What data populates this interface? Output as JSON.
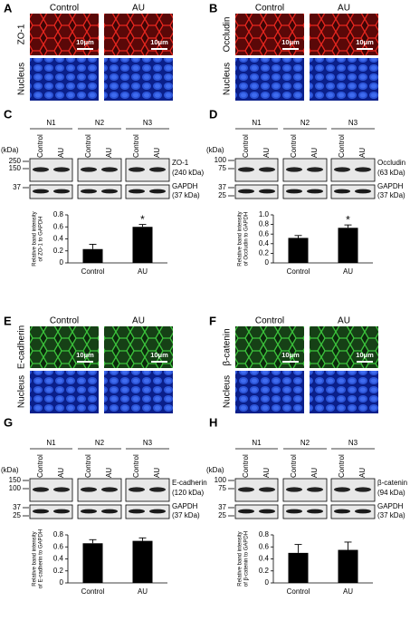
{
  "panels": [
    {
      "letter": "A",
      "columns": [
        "Control",
        "AU"
      ],
      "stain": "ZO-1",
      "stain_color": "red",
      "counterstain": "Nucleus",
      "scale_bar": "10μm"
    },
    {
      "letter": "B",
      "columns": [
        "Control",
        "AU"
      ],
      "stain": "Occludin",
      "stain_color": "red",
      "counterstain": "Nucleus",
      "scale_bar": "10μm"
    },
    {
      "letter": "E",
      "columns": [
        "Control",
        "AU"
      ],
      "stain": "E-cadherin",
      "stain_color": "green",
      "counterstain": "Nucleus",
      "scale_bar": "10μm"
    },
    {
      "letter": "F",
      "columns": [
        "Control",
        "AU"
      ],
      "stain": "β-catenin",
      "stain_color": "green",
      "counterstain": "Nucleus",
      "scale_bar": "10μm"
    }
  ],
  "blots": [
    {
      "letter": "C",
      "lanes": [
        "N1",
        "N2",
        "N3"
      ],
      "conditions": [
        "Control",
        "AU"
      ],
      "unit": "(kDa)",
      "markers": [
        250,
        150,
        37
      ],
      "target": "ZO-1",
      "target_size": "(240 kDa)",
      "loading": "GAPDH",
      "loading_size": "(37 kDa)"
    },
    {
      "letter": "D",
      "lanes": [
        "N1",
        "N2",
        "N3"
      ],
      "conditions": [
        "Control",
        "AU"
      ],
      "unit": "(kDa)",
      "markers": [
        100,
        75,
        37,
        25
      ],
      "target": "Occludin",
      "target_size": "(63 kDa)",
      "loading": "GAPDH",
      "loading_size": "(37 kDa)"
    },
    {
      "letter": "G",
      "lanes": [
        "N1",
        "N2",
        "N3"
      ],
      "conditions": [
        "Control",
        "AU"
      ],
      "unit": "(kDa)",
      "markers": [
        150,
        100,
        37,
        25
      ],
      "target": "E-cadherin",
      "target_size": "(120 kDa)",
      "loading": "GAPDH",
      "loading_size": "(37 kDa)"
    },
    {
      "letter": "H",
      "lanes": [
        "N1",
        "N2",
        "N3"
      ],
      "conditions": [
        "Control",
        "AU"
      ],
      "unit": "(kDa)",
      "markers": [
        100,
        75,
        37,
        25
      ],
      "target": "β-catenin",
      "target_size": "(94 kDa)",
      "loading": "GAPDH",
      "loading_size": "(37 kDa)"
    }
  ],
  "chart_data": [
    {
      "type": "bar",
      "categories": [
        "Control",
        "AU"
      ],
      "values": [
        0.23,
        0.6
      ],
      "errors": [
        0.08,
        0.04
      ],
      "color": "#000000",
      "ylim": [
        0,
        0.8
      ],
      "yticks": [
        0,
        0.2,
        0.4,
        0.6,
        0.8
      ],
      "ylabel": [
        "Relative band intensity",
        "of ZO-1 to GAPDH"
      ],
      "annotations": [
        {
          "category": "AU",
          "text": "*"
        }
      ]
    },
    {
      "type": "bar",
      "categories": [
        "Control",
        "AU"
      ],
      "values": [
        0.52,
        0.73
      ],
      "errors": [
        0.05,
        0.06
      ],
      "color": "#000000",
      "ylim": [
        0,
        1
      ],
      "yticks": [
        0,
        0.2,
        0.4,
        0.6,
        0.8,
        {
          "value": 1,
          "label": "1.0"
        }
      ],
      "ylabel": [
        "Relative band intensity",
        "of Occludin to GAPDH"
      ],
      "annotations": [
        {
          "category": "AU",
          "text": "*"
        }
      ]
    },
    {
      "type": "bar",
      "categories": [
        "Control",
        "AU"
      ],
      "values": [
        0.66,
        0.7
      ],
      "errors": [
        0.06,
        0.05
      ],
      "color": "#000000",
      "ylim": [
        0,
        0.8
      ],
      "yticks": [
        0,
        0.2,
        0.4,
        0.6,
        0.8
      ],
      "ylabel": [
        "Relative band intensity",
        "of E-cadherin to GAPDH"
      ]
    },
    {
      "type": "bar",
      "categories": [
        "Control",
        "AU"
      ],
      "values": [
        0.5,
        0.55
      ],
      "errors": [
        0.14,
        0.13
      ],
      "color": "#000000",
      "ylim": [
        0,
        0.8
      ],
      "yticks": [
        0,
        0.2,
        0.4,
        0.6,
        0.8
      ],
      "ylabel": [
        "Relative band intensity",
        "of β-catenin to GAPDH"
      ]
    }
  ]
}
